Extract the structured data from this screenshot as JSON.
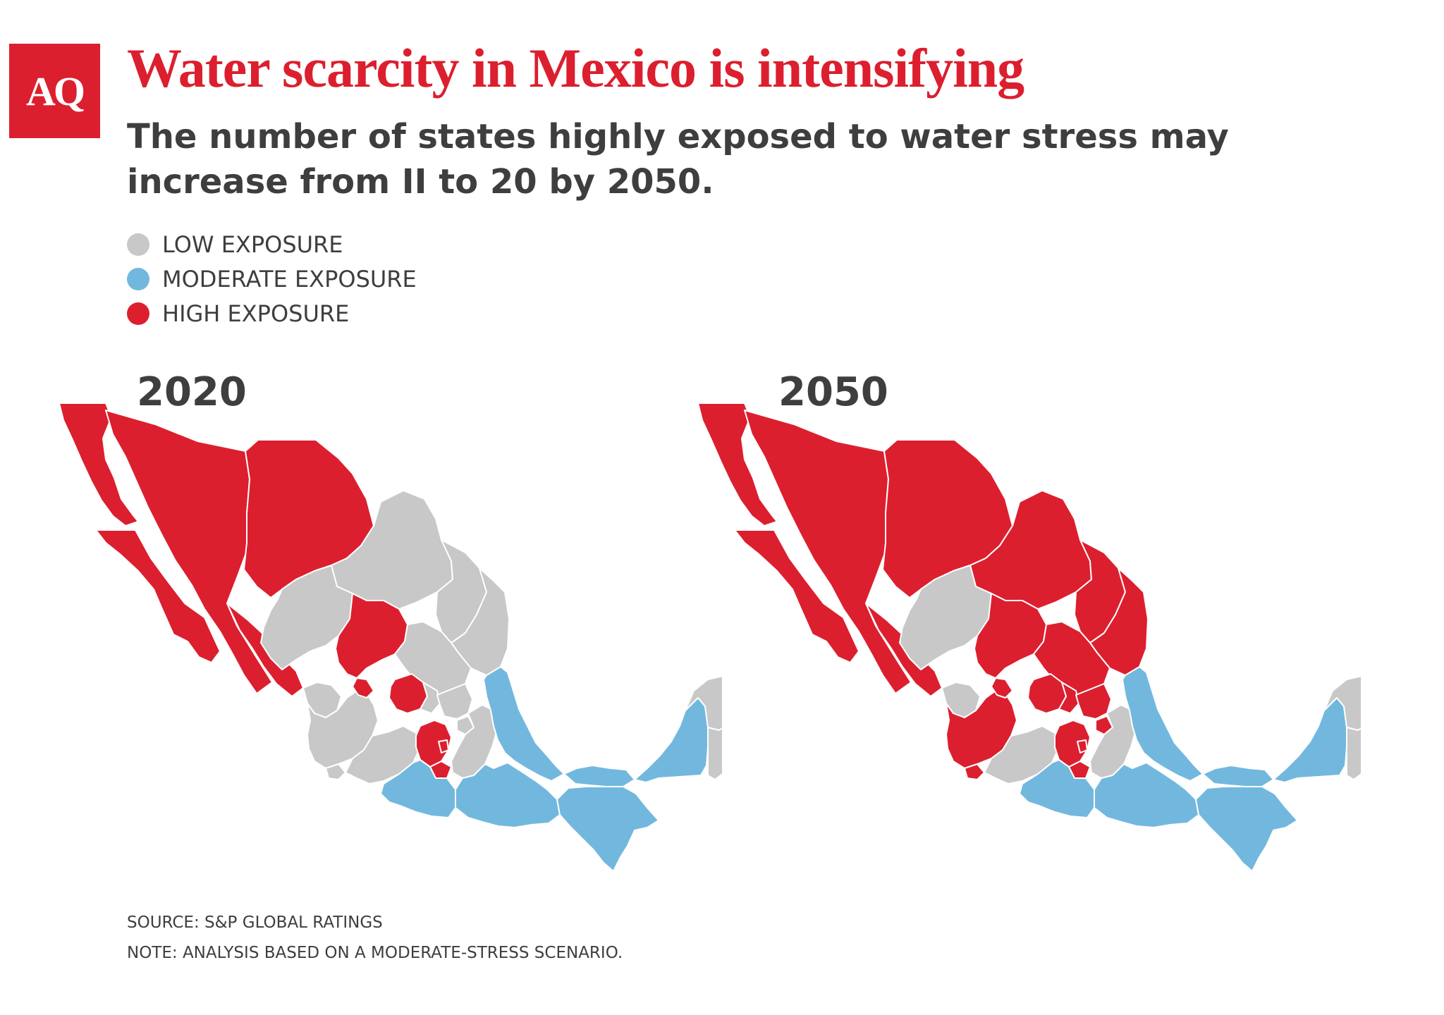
{
  "logo": {
    "text": "AQ"
  },
  "header": {
    "title": "Water scarcity in Mexico is intensifying",
    "subtitle": "The number of states highly exposed to water stress may increase from II to 20 by 2050."
  },
  "legend": {
    "items": [
      {
        "label": "LOW EXPOSURE",
        "color": "#c8c8c8"
      },
      {
        "label": "MODERATE EXPOSURE",
        "color": "#72b8de"
      },
      {
        "label": "HIGH EXPOSURE",
        "color": "#dc1f2e"
      }
    ]
  },
  "maps": [
    {
      "year": "2020",
      "high_exposure_states": 11
    },
    {
      "year": "2050",
      "high_exposure_states": 20
    }
  ],
  "footer": {
    "source": "SOURCE: S&P GLOBAL RATINGS",
    "note": "NOTE: ANALYSIS BASED ON A MODERATE-STRESS SCENARIO."
  }
}
